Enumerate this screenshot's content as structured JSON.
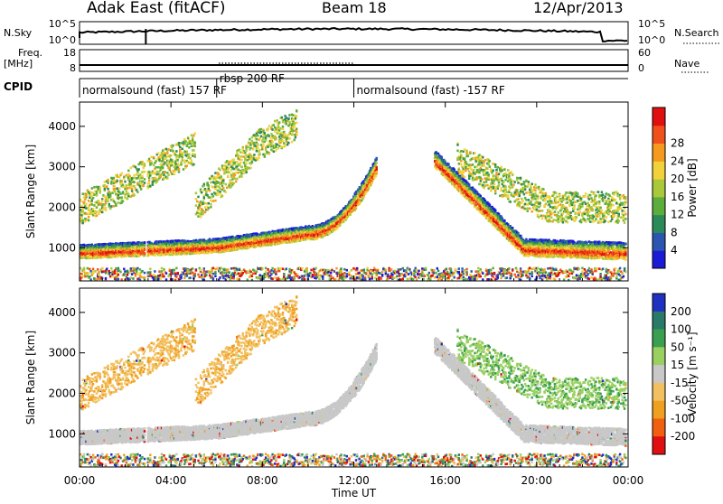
{
  "header": {
    "radar": "Adak East (fitACF)",
    "beam": "Beam 18",
    "date": "12/Apr/2013"
  },
  "top_panels": {
    "nsky_label": "N.Sky",
    "nsky_ticks": [
      "10^5",
      "10^0"
    ],
    "nsearch_label": "N.Search",
    "nsearch_ticks": [
      "10^5",
      "10^0"
    ],
    "freq_label": "Freq.",
    "freq_unit": "[MHz]",
    "freq_ticks": [
      "18",
      "8"
    ],
    "nave_label": "Nave",
    "nave_ticks": [
      "60",
      "0"
    ],
    "cpid_label": "CPID"
  },
  "cpid_segments": [
    {
      "label": "normalsound (fast) 157 RF",
      "start_hour": 0.0
    },
    {
      "label": "rbsp 200 RF",
      "start_hour": 6.0
    },
    {
      "label": "normalsound (fast) -157 RF",
      "start_hour": 12.0
    }
  ],
  "chart_data": [
    {
      "type": "heatmap",
      "panel": "power",
      "xlabel": "",
      "ylabel": "Slant Range [km]",
      "xlim": [
        0,
        24
      ],
      "ylim": [
        180,
        4600
      ],
      "y_ticks": [
        "1000",
        "2000",
        "3000",
        "4000"
      ],
      "colorbar": {
        "label": "Power [dB]",
        "ticks": [
          "4",
          "8",
          "12",
          "16",
          "20",
          "24",
          "28"
        ],
        "colors": [
          "#1b1bd6",
          "#2a55b0",
          "#2b8a5a",
          "#5dad3c",
          "#a9c83a",
          "#f2d23a",
          "#f59a1e",
          "#f0501c",
          "#e01010"
        ]
      }
    },
    {
      "type": "heatmap",
      "panel": "velocity",
      "xlabel": "Time UT",
      "ylabel": "Slant Range [km]",
      "xlim": [
        0,
        24
      ],
      "ylim": [
        180,
        4600
      ],
      "x_ticks": [
        "00:00",
        "04:00",
        "08:00",
        "12:00",
        "16:00",
        "20:00",
        "00:00"
      ],
      "y_ticks": [
        "1000",
        "2000",
        "3000",
        "4000"
      ],
      "colorbar": {
        "label": "Velocity [m s⁻¹]",
        "ticks": [
          "200",
          "100",
          "50",
          "15",
          "-15",
          "-50",
          "-100",
          "-200"
        ],
        "colors": [
          "#2030c0",
          "#2a7a6a",
          "#3aa050",
          "#9ad060",
          "#c8c8c8",
          "#f2c060",
          "#f0a020",
          "#f06010",
          "#e01010"
        ]
      }
    }
  ]
}
